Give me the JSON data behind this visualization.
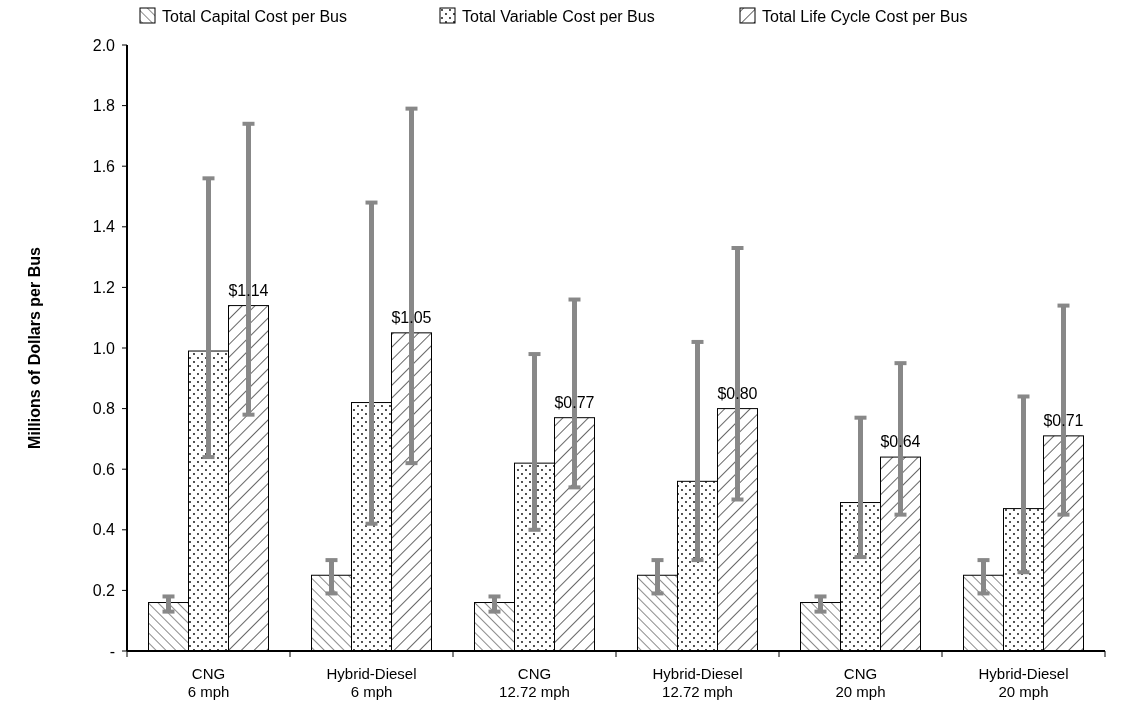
{
  "chart_data": {
    "type": "bar",
    "ylabel": "Millions of Dollars per Bus",
    "categories": [
      "CNG\n6 mph",
      "Hybrid-Diesel\n6 mph",
      "CNG\n12.72 mph",
      "Hybrid-Diesel\n12.72 mph",
      "CNG\n20 mph",
      "Hybrid-Diesel\n20 mph"
    ],
    "series": [
      {
        "name": "Total Capital Cost per Bus",
        "color": "#000000",
        "values": [
          0.16,
          0.25,
          0.16,
          0.25,
          0.16,
          0.25
        ],
        "errors": [
          [
            0.13,
            0.18
          ],
          [
            0.19,
            0.3
          ],
          [
            0.13,
            0.18
          ],
          [
            0.19,
            0.3
          ],
          [
            0.13,
            0.18
          ],
          [
            0.19,
            0.3
          ]
        ]
      },
      {
        "name": "Total Variable Cost per Bus",
        "color": "#000000",
        "values": [
          0.99,
          0.82,
          0.62,
          0.56,
          0.49,
          0.47
        ],
        "errors": [
          [
            0.64,
            1.56
          ],
          [
            0.42,
            1.48
          ],
          [
            0.4,
            0.98
          ],
          [
            0.3,
            1.02
          ],
          [
            0.31,
            0.77
          ],
          [
            0.26,
            0.84
          ]
        ]
      },
      {
        "name": "Total Life Cycle Cost per Bus",
        "color": "#000000",
        "values": [
          1.14,
          1.05,
          0.77,
          0.8,
          0.64,
          0.71
        ],
        "errors": [
          [
            0.78,
            1.74
          ],
          [
            0.62,
            1.79
          ],
          [
            0.54,
            1.16
          ],
          [
            0.5,
            1.33
          ],
          [
            0.45,
            0.95
          ],
          [
            0.45,
            1.14
          ]
        ],
        "value_labels": [
          "$1.14",
          "$1.05",
          "$0.77",
          "$0.80",
          "$0.64",
          "$0.71"
        ]
      }
    ],
    "ylim": [
      0,
      2
    ],
    "yticks": [
      {
        "value": 0,
        "label": "-"
      },
      {
        "value": 0.2,
        "label": "0.2"
      },
      {
        "value": 0.4,
        "label": "0.4"
      },
      {
        "value": 0.6,
        "label": "0.6"
      },
      {
        "value": 0.8,
        "label": "0.8"
      },
      {
        "value": 1.0,
        "label": "1.0"
      },
      {
        "value": 1.2,
        "label": "1.2"
      },
      {
        "value": 1.4,
        "label": "1.4"
      },
      {
        "value": 1.6,
        "label": "1.6"
      },
      {
        "value": 1.8,
        "label": "1.8"
      },
      {
        "value": 2.0,
        "label": "2.0"
      }
    ],
    "legend": "top",
    "grid": false
  }
}
